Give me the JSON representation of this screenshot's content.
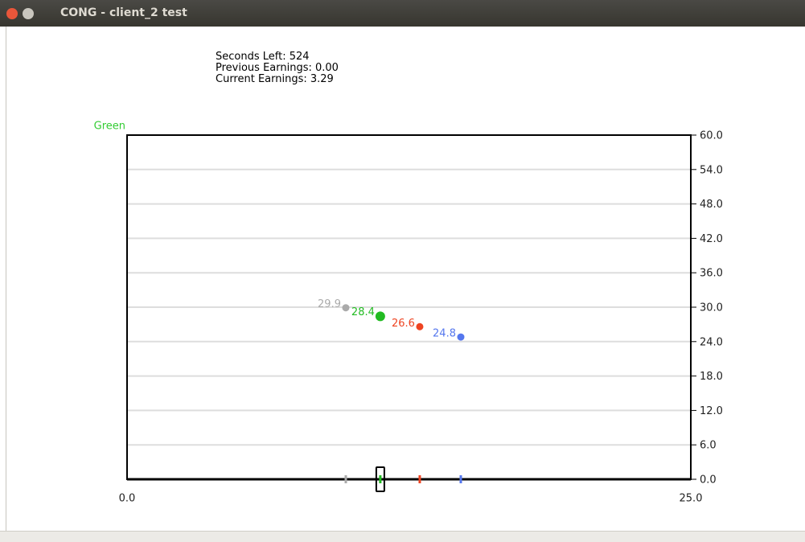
{
  "window": {
    "title": "CONG - client_2 test"
  },
  "status": [
    "Seconds Left: 524",
    "Previous Earnings: 0.00",
    "Current Earnings: 3.29"
  ],
  "chart_data": {
    "type": "scatter",
    "label": "Green",
    "label_color": "#33cc33",
    "xlim": [
      0,
      25
    ],
    "ylim": [
      0,
      60
    ],
    "xticks": [
      {
        "value": 0,
        "label": "0.0"
      },
      {
        "value": 25,
        "label": "25.0"
      }
    ],
    "yticks": [
      {
        "value": 0,
        "label": "0.0"
      },
      {
        "value": 6,
        "label": "6.0"
      },
      {
        "value": 12,
        "label": "12.0"
      },
      {
        "value": 18,
        "label": "18.0"
      },
      {
        "value": 24,
        "label": "24.0"
      },
      {
        "value": 30,
        "label": "30.0"
      },
      {
        "value": 36,
        "label": "36.0"
      },
      {
        "value": 42,
        "label": "42.0"
      },
      {
        "value": 48,
        "label": "48.0"
      },
      {
        "value": 54,
        "label": "54.0"
      },
      {
        "value": 60,
        "label": "60.0"
      }
    ],
    "grid": true,
    "series": [
      {
        "color": "#aaaaaa",
        "x": [
          9.7
        ],
        "values": [
          29.9
        ]
      },
      {
        "color": "#22bb22",
        "x": [
          11.23
        ],
        "values": [
          28.4
        ]
      },
      {
        "color": "#ee4422",
        "x": [
          12.98
        ],
        "values": [
          26.6
        ]
      },
      {
        "color": "#5577ee",
        "x": [
          14.8
        ],
        "values": [
          24.8
        ]
      }
    ]
  }
}
